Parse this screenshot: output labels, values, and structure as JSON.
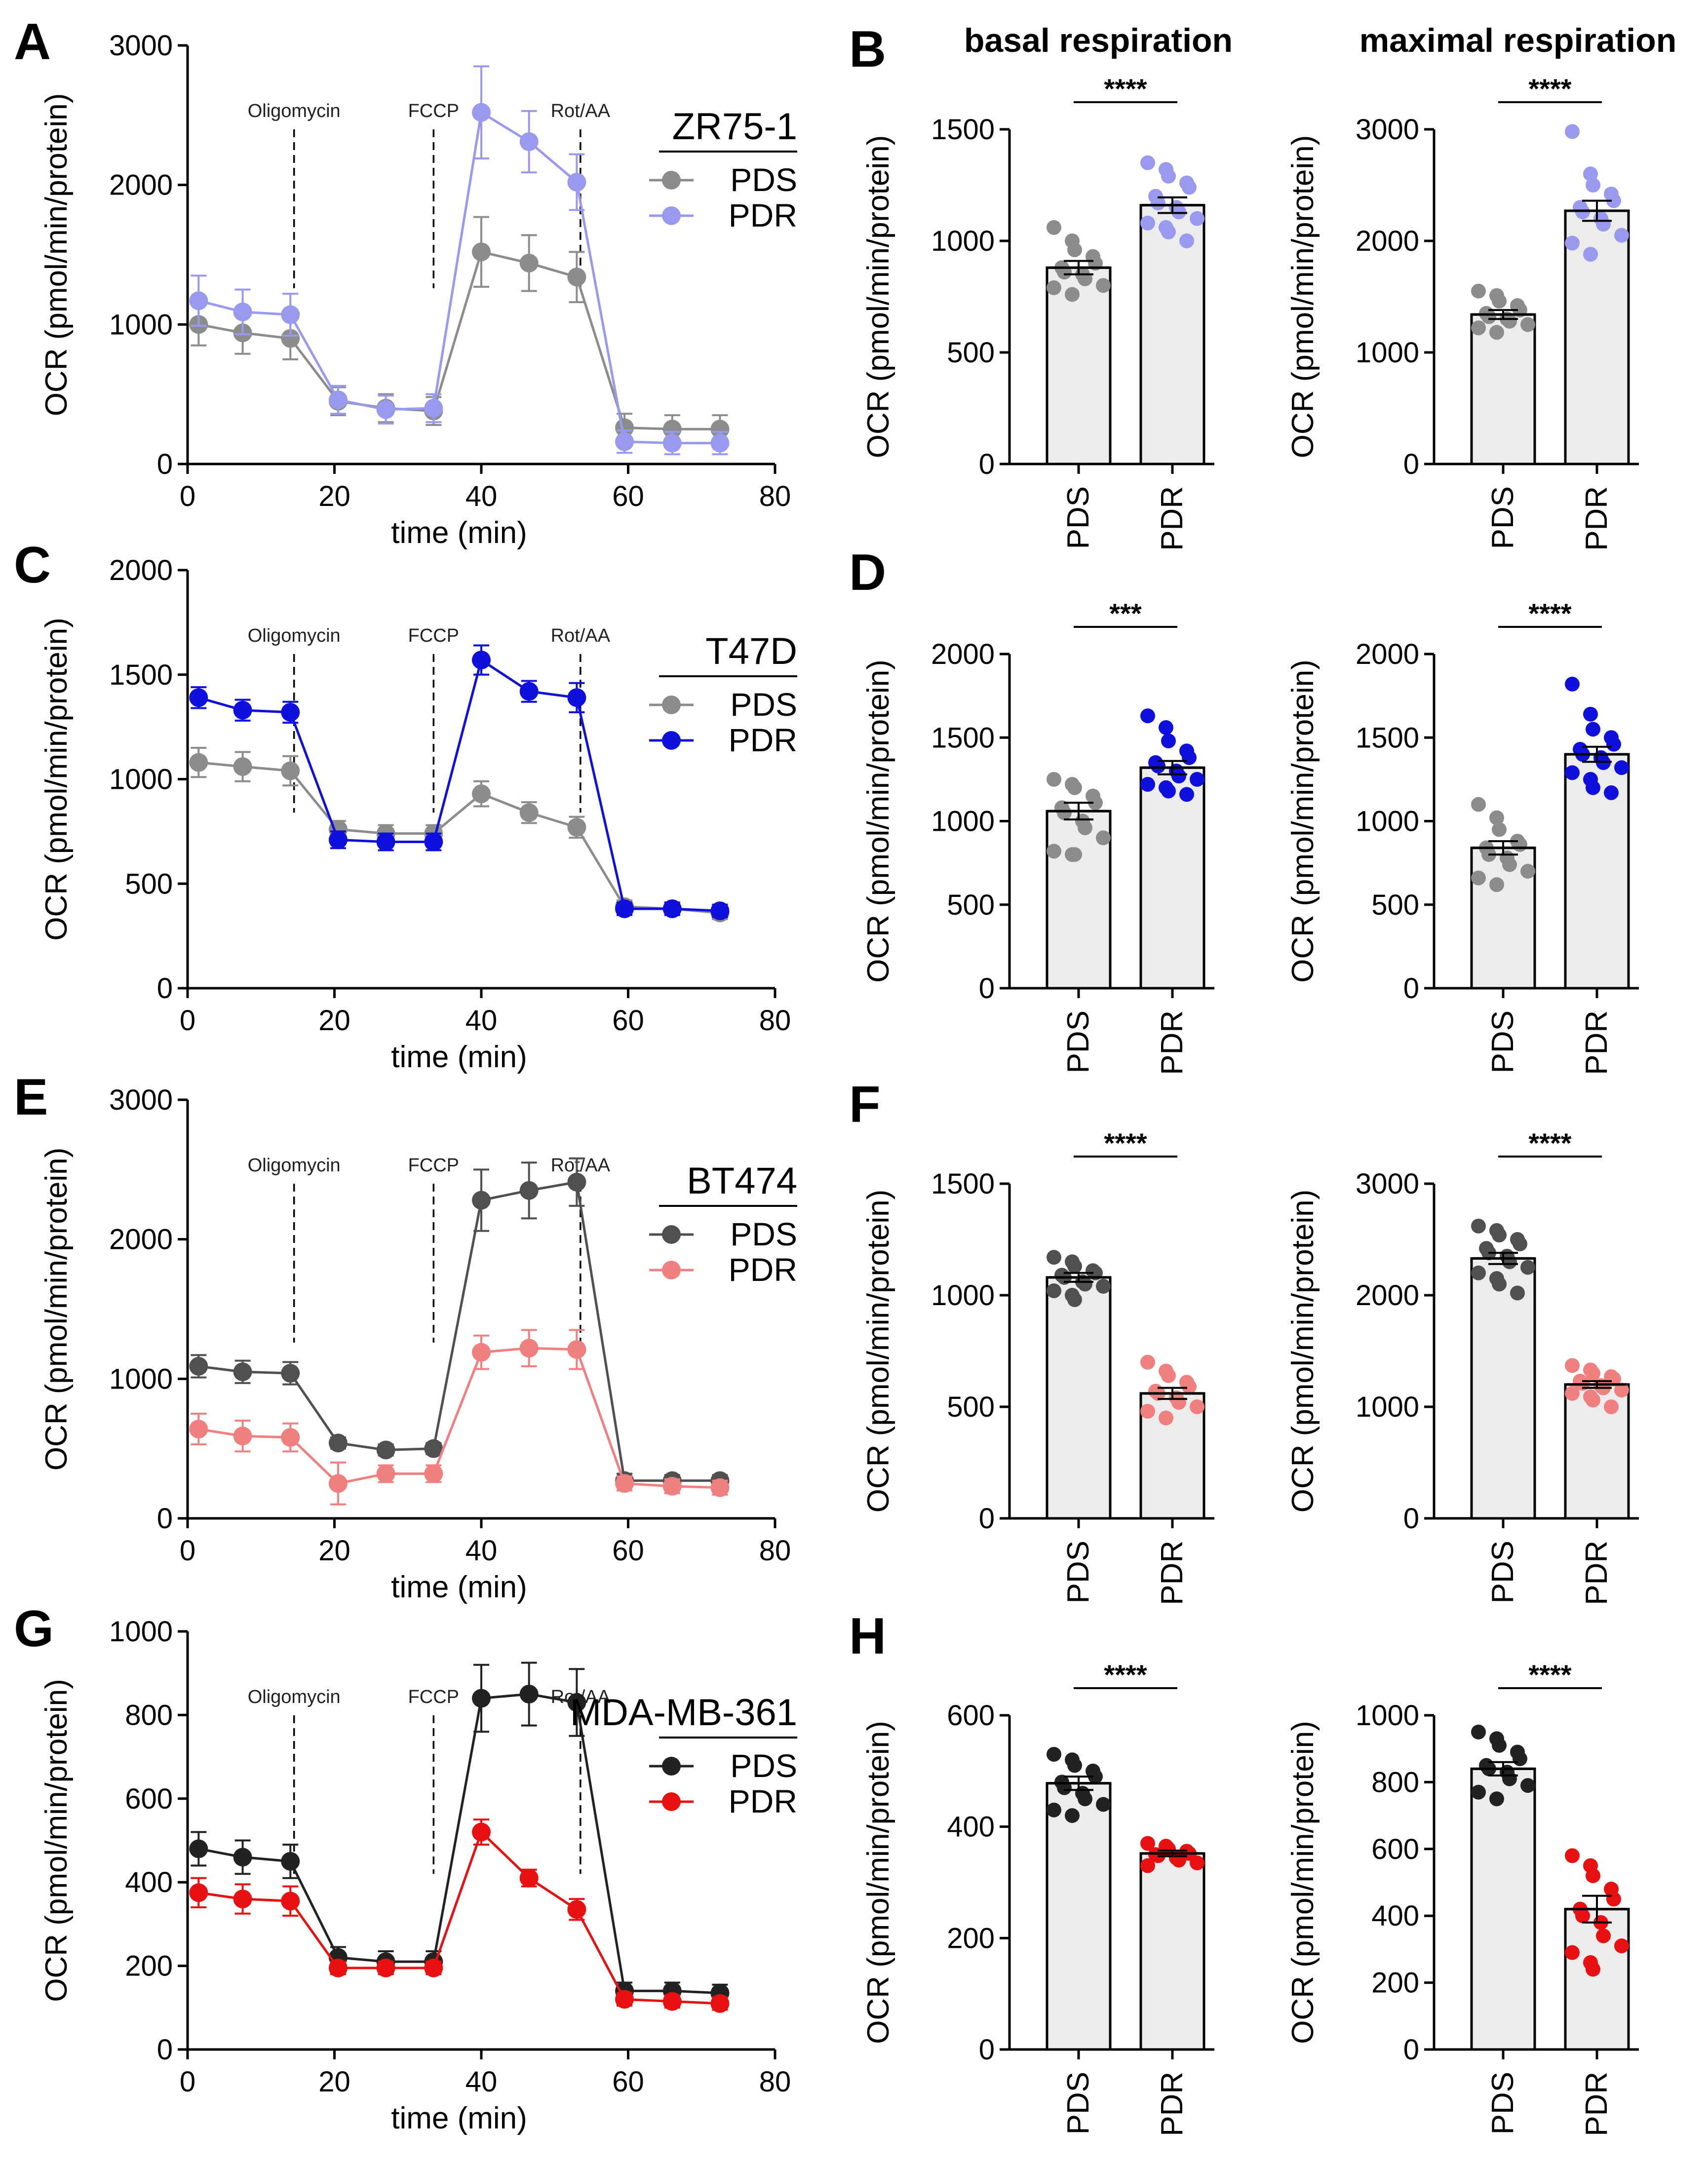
{
  "header": {
    "basal_title": "basal respiration",
    "maximal_title": "maximal respiration"
  },
  "chart_data": [
    {
      "type": "line",
      "panel": "A",
      "cell_line": "ZR75-1",
      "xlabel": "time (min)",
      "ylabel": "OCR (pmol/min/protein)",
      "xlim": [
        0,
        80
      ],
      "ylim": [
        0,
        3000
      ],
      "xticks": [
        0,
        20,
        40,
        60,
        80
      ],
      "yticks": [
        0,
        1000,
        2000,
        3000
      ],
      "injections": [
        {
          "label": "Oligomycin",
          "x": 14.5
        },
        {
          "label": "FCCP",
          "x": 33.5
        },
        {
          "label": "Rot/AA",
          "x": 53.5
        }
      ],
      "x": [
        1.5,
        7.5,
        14,
        20.5,
        27,
        33.5,
        40,
        46.5,
        53,
        59.5,
        66,
        72.5
      ],
      "series": [
        {
          "name": "PDS",
          "color": "#8c8c8c",
          "values": [
            1000,
            940,
            900,
            450,
            400,
            380,
            1520,
            1440,
            1340,
            260,
            250,
            250
          ],
          "err": [
            150,
            150,
            150,
            100,
            100,
            100,
            250,
            200,
            180,
            100,
            100,
            100
          ]
        },
        {
          "name": "PDR",
          "color": "#9999ee",
          "values": [
            1170,
            1090,
            1070,
            460,
            390,
            400,
            2520,
            2310,
            2020,
            160,
            150,
            150
          ],
          "err": [
            180,
            160,
            150,
            100,
            100,
            100,
            330,
            220,
            200,
            80,
            80,
            80
          ]
        }
      ]
    },
    {
      "type": "bar",
      "panel": "B",
      "measure": "basal respiration",
      "ylabel": "OCR (pmol/min/protein)",
      "categories": [
        "PDS",
        "PDR"
      ],
      "ylim": [
        0,
        1500
      ],
      "yticks": [
        0,
        500,
        1000,
        1500
      ],
      "colors": [
        "#8c8c8c",
        "#9999ee"
      ],
      "values": [
        880,
        1160
      ],
      "sem": [
        30,
        35
      ],
      "points": [
        [
          1060,
          1000,
          960,
          930,
          900,
          880,
          860,
          850,
          830,
          800,
          790,
          760
        ],
        [
          1350,
          1320,
          1290,
          1260,
          1240,
          1200,
          1170,
          1150,
          1130,
          1100,
          1080,
          1060,
          1040,
          1000
        ]
      ],
      "significance": "****"
    },
    {
      "type": "bar",
      "panel": "B",
      "measure": "maximal respiration",
      "ylabel": "OCR (pmol/min/protein)",
      "categories": [
        "PDS",
        "PDR"
      ],
      "ylim": [
        0,
        3000
      ],
      "yticks": [
        0,
        1000,
        2000,
        3000
      ],
      "colors": [
        "#8c8c8c",
        "#9999ee"
      ],
      "values": [
        1340,
        2270
      ],
      "sem": [
        40,
        90
      ],
      "points": [
        [
          1550,
          1510,
          1460,
          1420,
          1380,
          1350,
          1320,
          1300,
          1280,
          1250,
          1220,
          1180
        ],
        [
          2980,
          2600,
          2500,
          2420,
          2360,
          2300,
          2260,
          2200,
          2150,
          2050,
          1980,
          1880
        ]
      ],
      "significance": "****"
    },
    {
      "type": "line",
      "panel": "C",
      "cell_line": "T47D",
      "xlabel": "time (min)",
      "ylabel": "OCR (pmol/min/protein)",
      "xlim": [
        0,
        80
      ],
      "ylim": [
        0,
        2000
      ],
      "xticks": [
        0,
        20,
        40,
        60,
        80
      ],
      "yticks": [
        0,
        500,
        1000,
        1500,
        2000
      ],
      "injections": [
        {
          "label": "Oligomycin",
          "x": 14.5
        },
        {
          "label": "FCCP",
          "x": 33.5
        },
        {
          "label": "Rot/AA",
          "x": 53.5
        }
      ],
      "x": [
        1.5,
        7.5,
        14,
        20.5,
        27,
        33.5,
        40,
        46.5,
        53,
        59.5,
        66,
        72.5
      ],
      "series": [
        {
          "name": "PDS",
          "color": "#8c8c8c",
          "values": [
            1080,
            1060,
            1040,
            760,
            740,
            740,
            930,
            840,
            770,
            390,
            380,
            360
          ],
          "err": [
            70,
            70,
            70,
            40,
            40,
            40,
            60,
            50,
            50,
            30,
            30,
            30
          ]
        },
        {
          "name": "PDR",
          "color": "#1010dd",
          "values": [
            1390,
            1330,
            1320,
            710,
            700,
            700,
            1570,
            1420,
            1390,
            380,
            380,
            370
          ],
          "err": [
            50,
            50,
            50,
            40,
            40,
            40,
            70,
            50,
            70,
            30,
            30,
            30
          ]
        }
      ]
    },
    {
      "type": "bar",
      "panel": "D",
      "measure": "basal respiration",
      "ylabel": "OCR (pmol/min/protein)",
      "categories": [
        "PDS",
        "PDR"
      ],
      "ylim": [
        0,
        2000
      ],
      "yticks": [
        0,
        500,
        1000,
        1500,
        2000
      ],
      "colors": [
        "#8c8c8c",
        "#1010dd"
      ],
      "values": [
        1060,
        1320
      ],
      "sem": [
        50,
        40
      ],
      "points": [
        [
          1250,
          1220,
          1200,
          1150,
          1110,
          1080,
          1050,
          1000,
          960,
          900,
          820,
          800,
          800
        ],
        [
          1630,
          1560,
          1480,
          1420,
          1380,
          1350,
          1330,
          1300,
          1270,
          1250,
          1220,
          1200,
          1180,
          1160
        ]
      ],
      "significance": "***"
    },
    {
      "type": "bar",
      "panel": "D",
      "measure": "maximal respiration",
      "ylabel": "OCR (pmol/min/protein)",
      "categories": [
        "PDS",
        "PDR"
      ],
      "ylim": [
        0,
        2000
      ],
      "yticks": [
        0,
        500,
        1000,
        1500,
        2000
      ],
      "colors": [
        "#8c8c8c",
        "#1010dd"
      ],
      "values": [
        840,
        1400
      ],
      "sem": [
        40,
        45
      ],
      "points": [
        [
          1100,
          1020,
          950,
          880,
          860,
          840,
          800,
          780,
          740,
          700,
          660,
          620
        ],
        [
          1820,
          1640,
          1550,
          1500,
          1460,
          1430,
          1400,
          1380,
          1350,
          1320,
          1290,
          1250,
          1200,
          1170
        ]
      ],
      "significance": "****"
    },
    {
      "type": "line",
      "panel": "E",
      "cell_line": "BT474",
      "xlabel": "time (min)",
      "ylabel": "OCR (pmol/min/protein)",
      "xlim": [
        0,
        80
      ],
      "ylim": [
        0,
        3000
      ],
      "xticks": [
        0,
        20,
        40,
        60,
        80
      ],
      "yticks": [
        0,
        1000,
        2000,
        3000
      ],
      "injections": [
        {
          "label": "Oligomycin",
          "x": 14.5
        },
        {
          "label": "FCCP",
          "x": 33.5
        },
        {
          "label": "Rot/AA",
          "x": 53.5
        }
      ],
      "x": [
        1.5,
        7.5,
        14,
        20.5,
        27,
        33.5,
        40,
        46.5,
        53,
        59.5,
        66,
        72.5
      ],
      "series": [
        {
          "name": "PDS",
          "color": "#505050",
          "values": [
            1090,
            1050,
            1040,
            540,
            490,
            500,
            2280,
            2350,
            2410,
            270,
            270,
            270
          ],
          "err": [
            80,
            80,
            80,
            40,
            40,
            40,
            220,
            200,
            170,
            50,
            40,
            40
          ]
        },
        {
          "name": "PDR",
          "color": "#f08080",
          "values": [
            640,
            590,
            580,
            250,
            320,
            320,
            1190,
            1220,
            1210,
            250,
            230,
            220
          ],
          "err": [
            110,
            110,
            100,
            150,
            60,
            60,
            120,
            130,
            140,
            50,
            50,
            50
          ]
        }
      ]
    },
    {
      "type": "bar",
      "panel": "F",
      "measure": "basal respiration",
      "ylabel": "OCR (pmol/min/protein)",
      "categories": [
        "PDS",
        "PDR"
      ],
      "ylim": [
        0,
        1500
      ],
      "yticks": [
        0,
        500,
        1000,
        1500
      ],
      "colors": [
        "#505050",
        "#f08080"
      ],
      "values": [
        1080,
        560
      ],
      "sem": [
        20,
        25
      ],
      "points": [
        [
          1170,
          1150,
          1130,
          1110,
          1100,
          1090,
          1080,
          1060,
          1050,
          1040,
          1020,
          1000,
          980
        ],
        [
          700,
          660,
          640,
          610,
          590,
          570,
          560,
          540,
          520,
          500,
          480,
          450
        ]
      ],
      "significance": "****"
    },
    {
      "type": "bar",
      "panel": "F",
      "measure": "maximal respiration",
      "ylabel": "OCR (pmol/min/protein)",
      "categories": [
        "PDS",
        "PDR"
      ],
      "ylim": [
        0,
        3000
      ],
      "yticks": [
        0,
        1000,
        2000,
        3000
      ],
      "colors": [
        "#505050",
        "#f08080"
      ],
      "values": [
        2330,
        1200
      ],
      "sem": [
        50,
        30
      ],
      "points": [
        [
          2620,
          2580,
          2540,
          2500,
          2460,
          2420,
          2380,
          2350,
          2300,
          2250,
          2200,
          2150,
          2100,
          2020
        ],
        [
          1370,
          1330,
          1300,
          1270,
          1250,
          1230,
          1210,
          1190,
          1170,
          1150,
          1120,
          1090,
          1060,
          1000
        ]
      ],
      "significance": "****"
    },
    {
      "type": "line",
      "panel": "G",
      "cell_line": "MDA-MB-361",
      "xlabel": "time (min)",
      "ylabel": "OCR (pmol/min/protein)",
      "xlim": [
        0,
        80
      ],
      "ylim": [
        0,
        1000
      ],
      "xticks": [
        0,
        20,
        40,
        60,
        80
      ],
      "yticks": [
        0,
        200,
        400,
        600,
        800,
        1000
      ],
      "injections": [
        {
          "label": "Oligomycin",
          "x": 14.5
        },
        {
          "label": "FCCP",
          "x": 33.5
        },
        {
          "label": "Rot/AA",
          "x": 53.5
        }
      ],
      "x": [
        1.5,
        7.5,
        14,
        20.5,
        27,
        33.5,
        40,
        46.5,
        53,
        59.5,
        66,
        72.5
      ],
      "series": [
        {
          "name": "PDS",
          "color": "#222222",
          "values": [
            480,
            460,
            450,
            220,
            210,
            210,
            840,
            850,
            830,
            140,
            140,
            135
          ],
          "err": [
            40,
            40,
            40,
            25,
            25,
            25,
            80,
            75,
            80,
            20,
            20,
            20
          ]
        },
        {
          "name": "PDR",
          "color": "#e81010",
          "values": [
            375,
            360,
            355,
            195,
            195,
            195,
            520,
            410,
            335,
            120,
            115,
            110
          ],
          "err": [
            35,
            35,
            35,
            15,
            15,
            15,
            30,
            20,
            25,
            15,
            15,
            15
          ]
        }
      ]
    },
    {
      "type": "bar",
      "panel": "H",
      "measure": "basal respiration",
      "ylabel": "OCR (pmol/min/protein)",
      "categories": [
        "PDS",
        "PDR"
      ],
      "ylim": [
        0,
        600
      ],
      "yticks": [
        0,
        200,
        400,
        600
      ],
      "colors": [
        "#222222",
        "#e81010"
      ],
      "values": [
        478,
        352
      ],
      "sem": [
        12,
        5
      ],
      "points": [
        [
          530,
          520,
          510,
          500,
          490,
          480,
          470,
          460,
          450,
          440,
          430,
          420
        ],
        [
          370,
          365,
          360,
          356,
          352,
          350,
          348,
          344,
          340,
          335,
          330
        ]
      ],
      "significance": "****"
    },
    {
      "type": "bar",
      "panel": "H",
      "measure": "maximal respiration",
      "ylabel": "OCR (pmol/min/protein)",
      "categories": [
        "PDS",
        "PDR"
      ],
      "ylim": [
        0,
        1000
      ],
      "yticks": [
        0,
        200,
        400,
        600,
        800,
        1000
      ],
      "colors": [
        "#222222",
        "#e81010"
      ],
      "values": [
        840,
        420
      ],
      "sem": [
        20,
        40
      ],
      "points": [
        [
          950,
          930,
          910,
          890,
          870,
          850,
          840,
          830,
          810,
          790,
          770,
          750
        ],
        [
          580,
          550,
          520,
          480,
          450,
          420,
          400,
          380,
          340,
          310,
          290,
          260,
          240
        ]
      ],
      "significance": "****"
    }
  ]
}
